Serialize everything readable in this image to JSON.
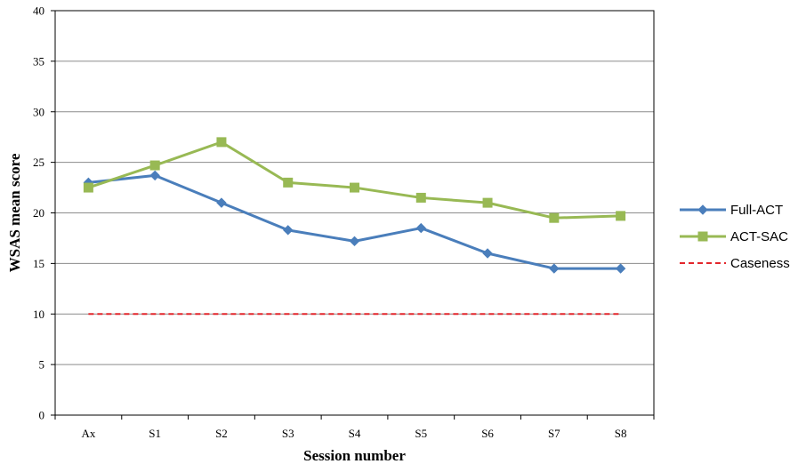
{
  "chart_data": {
    "type": "line",
    "title": "",
    "xlabel": "Session number",
    "ylabel": "WSAS mean score",
    "categories": [
      "Ax",
      "S1",
      "S2",
      "S3",
      "S4",
      "S5",
      "S6",
      "S7",
      "S8"
    ],
    "ylim": [
      0,
      40
    ],
    "yticks": [
      0,
      5,
      10,
      15,
      20,
      25,
      30,
      35,
      40
    ],
    "grid": true,
    "legend_position": "right",
    "series": [
      {
        "name": "Full-ACT",
        "color": "#4a7ebb",
        "marker": "diamond",
        "style": "solid",
        "values": [
          23,
          23.7,
          21,
          18.3,
          17.2,
          18.5,
          16,
          14.5,
          14.5
        ]
      },
      {
        "name": "ACT-SAC",
        "color": "#98b954",
        "marker": "square",
        "style": "solid",
        "values": [
          22.5,
          24.7,
          27,
          23,
          22.5,
          21.5,
          21,
          19.5,
          19.7
        ]
      },
      {
        "name": "Caseness",
        "color": "#e3262b",
        "marker": "none",
        "style": "dashed",
        "values": [
          10,
          10,
          10,
          10,
          10,
          10,
          10,
          10,
          10
        ]
      }
    ]
  }
}
